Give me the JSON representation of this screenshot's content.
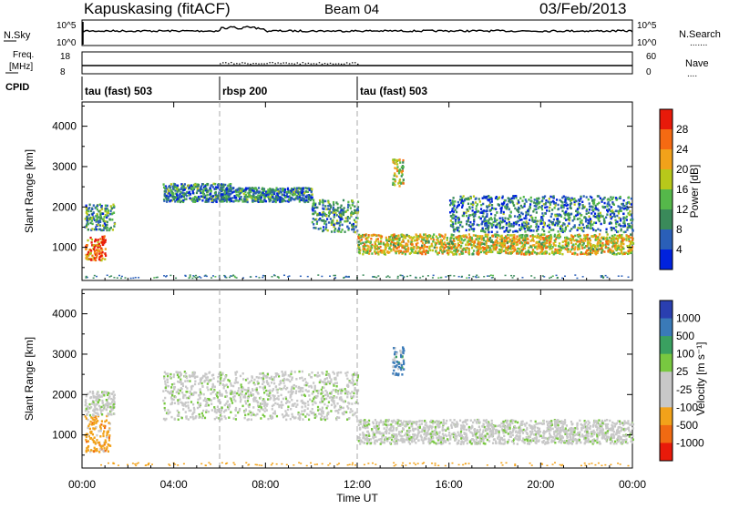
{
  "header": {
    "station": "Kapuskasing (fitACF)",
    "beam": "Beam 04",
    "date": "03/Feb/2013"
  },
  "strip_nsky": {
    "label": "N.Sky",
    "ticks_left": [
      "10^5",
      "10^0"
    ],
    "ticks_right": [
      "10^5",
      "10^0"
    ],
    "right_label": "N.Search",
    "right_legend": "......."
  },
  "strip_freq": {
    "label_line1": "Freq.",
    "label_line2": "[MHz]",
    "ticks_left": [
      "18",
      "8"
    ],
    "ticks_right": [
      "60",
      "0"
    ],
    "right_label": "Nave",
    "right_legend": "...."
  },
  "cpid": {
    "label": "CPID",
    "segments": [
      {
        "name": "tau (fast) 503",
        "start": "00:00",
        "end": "06:00"
      },
      {
        "name": "rbsp 200",
        "start": "06:00",
        "end": "12:00"
      },
      {
        "name": "tau (fast) 503",
        "start": "12:00",
        "end": "24:00"
      }
    ]
  },
  "power_panel": {
    "ylabel": "Slant Range [km]",
    "yticks": [
      "4000",
      "3000",
      "2000",
      "1000"
    ],
    "colorbar_label": "Power [dB]",
    "colorbar_ticks": [
      "28",
      "24",
      "20",
      "16",
      "12",
      "8",
      "4"
    ],
    "colors": [
      "#0022dd",
      "#2a5fb8",
      "#3a8a5a",
      "#55b84a",
      "#b8c81a",
      "#f2a21a",
      "#f56a12",
      "#e81a0a"
    ]
  },
  "velocity_panel": {
    "ylabel": "Slant Range [km]",
    "yticks": [
      "4000",
      "3000",
      "2000",
      "1000"
    ],
    "colorbar_label": "Velocity [m s⁻¹]",
    "colorbar_ticks": [
      "1000",
      "500",
      "100",
      "25",
      "-25",
      "-100",
      "-500",
      "-1000"
    ],
    "colors": [
      "#2a3fb0",
      "#3a7ab8",
      "#3aa060",
      "#78c840",
      "#c8c8c8",
      "#c8c8c8",
      "#f2a21a",
      "#f06a12",
      "#e81a0a"
    ]
  },
  "xaxis": {
    "label": "Time UT",
    "ticks": [
      "00:00",
      "04:00",
      "08:00",
      "12:00",
      "16:00",
      "20:00",
      "00:00"
    ]
  },
  "chart_data": {
    "type": "heatmap",
    "title": "Kapuskasing (fitACF)  Beam 04  03/Feb/2013",
    "xlabel": "Time UT",
    "ylabel": "Slant Range [km]",
    "xlim_hours": [
      0,
      24
    ],
    "ylim_km": [
      180,
      4600
    ],
    "power_scale_db": [
      0,
      30
    ],
    "velocity_scale_ms": [
      -1000,
      1000
    ],
    "power_regions": [
      {
        "t": [
          0.1,
          1.0
        ],
        "range_km": [
          700,
          1300
        ],
        "power_db": 24
      },
      {
        "t": [
          0.1,
          1.4
        ],
        "range_km": [
          1450,
          2100
        ],
        "power_db": 10
      },
      {
        "t": [
          3.5,
          6.5
        ],
        "range_km": [
          2150,
          2600
        ],
        "power_db": 8
      },
      {
        "t": [
          6.0,
          10.0
        ],
        "range_km": [
          2150,
          2500
        ],
        "power_db": 8
      },
      {
        "t": [
          10.0,
          12.0
        ],
        "range_km": [
          1400,
          2200
        ],
        "power_db": 10
      },
      {
        "t": [
          12.0,
          24.0
        ],
        "range_km": [
          850,
          1350
        ],
        "power_db": 18
      },
      {
        "t": [
          13.5,
          14.0
        ],
        "range_km": [
          2500,
          3200
        ],
        "power_db": 16
      },
      {
        "t": [
          16.0,
          24.0
        ],
        "range_km": [
          1400,
          2300
        ],
        "power_db": 8
      }
    ],
    "velocity_regions": [
      {
        "t": [
          0.1,
          1.2
        ],
        "range_km": [
          600,
          1500
        ],
        "velocity_ms": -300
      },
      {
        "t": [
          0.1,
          1.4
        ],
        "range_km": [
          1500,
          2100
        ],
        "velocity_ms": 0
      },
      {
        "t": [
          3.5,
          12.0
        ],
        "range_km": [
          1400,
          2600
        ],
        "velocity_ms": 0
      },
      {
        "t": [
          12.0,
          24.0
        ],
        "range_km": [
          800,
          1400
        ],
        "velocity_ms": 0
      },
      {
        "t": [
          13.5,
          14.0
        ],
        "range_km": [
          2500,
          3200
        ],
        "velocity_ms": 200
      }
    ]
  }
}
